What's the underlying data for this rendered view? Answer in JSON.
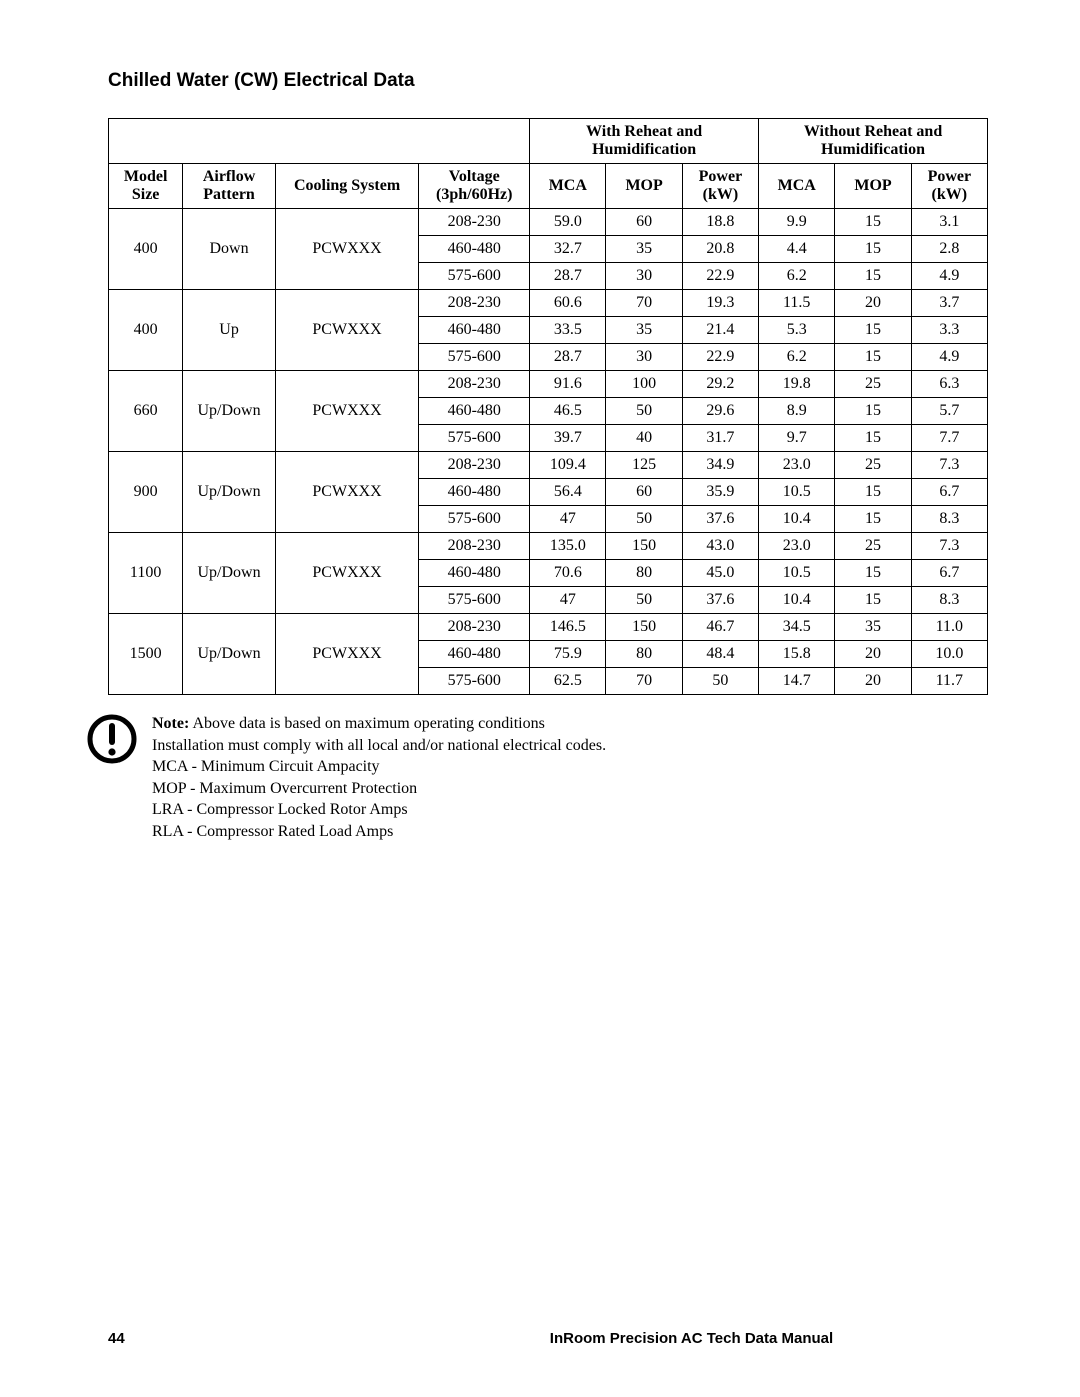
{
  "title": "Chilled Water (CW) Electrical Data",
  "headers": {
    "group_with": "With Reheat and Humidification",
    "group_without": "Without Reheat and Humidification",
    "model": "Model Size",
    "airflow": "Airflow Pattern",
    "cooling": "Cooling System",
    "voltage": "Voltage (3ph/60Hz)",
    "mca": "MCA",
    "mop": "MOP",
    "power": "Power (kW)"
  },
  "groups": [
    {
      "model": "400",
      "airflow": "Down",
      "cooling": "PCWXXX",
      "rows": [
        {
          "voltage": "208-230",
          "w_mca": "59.0",
          "w_mop": "60",
          "w_pow": "18.8",
          "wo_mca": "9.9",
          "wo_mop": "15",
          "wo_pow": "3.1"
        },
        {
          "voltage": "460-480",
          "w_mca": "32.7",
          "w_mop": "35",
          "w_pow": "20.8",
          "wo_mca": "4.4",
          "wo_mop": "15",
          "wo_pow": "2.8"
        },
        {
          "voltage": "575-600",
          "w_mca": "28.7",
          "w_mop": "30",
          "w_pow": "22.9",
          "wo_mca": "6.2",
          "wo_mop": "15",
          "wo_pow": "4.9"
        }
      ]
    },
    {
      "model": "400",
      "airflow": "Up",
      "cooling": "PCWXXX",
      "rows": [
        {
          "voltage": "208-230",
          "w_mca": "60.6",
          "w_mop": "70",
          "w_pow": "19.3",
          "wo_mca": "11.5",
          "wo_mop": "20",
          "wo_pow": "3.7"
        },
        {
          "voltage": "460-480",
          "w_mca": "33.5",
          "w_mop": "35",
          "w_pow": "21.4",
          "wo_mca": "5.3",
          "wo_mop": "15",
          "wo_pow": "3.3"
        },
        {
          "voltage": "575-600",
          "w_mca": "28.7",
          "w_mop": "30",
          "w_pow": "22.9",
          "wo_mca": "6.2",
          "wo_mop": "15",
          "wo_pow": "4.9"
        }
      ]
    },
    {
      "model": "660",
      "airflow": "Up/Down",
      "cooling": "PCWXXX",
      "rows": [
        {
          "voltage": "208-230",
          "w_mca": "91.6",
          "w_mop": "100",
          "w_pow": "29.2",
          "wo_mca": "19.8",
          "wo_mop": "25",
          "wo_pow": "6.3"
        },
        {
          "voltage": "460-480",
          "w_mca": "46.5",
          "w_mop": "50",
          "w_pow": "29.6",
          "wo_mca": "8.9",
          "wo_mop": "15",
          "wo_pow": "5.7"
        },
        {
          "voltage": "575-600",
          "w_mca": "39.7",
          "w_mop": "40",
          "w_pow": "31.7",
          "wo_mca": "9.7",
          "wo_mop": "15",
          "wo_pow": "7.7"
        }
      ]
    },
    {
      "model": "900",
      "airflow": "Up/Down",
      "cooling": "PCWXXX",
      "rows": [
        {
          "voltage": "208-230",
          "w_mca": "109.4",
          "w_mop": "125",
          "w_pow": "34.9",
          "wo_mca": "23.0",
          "wo_mop": "25",
          "wo_pow": "7.3"
        },
        {
          "voltage": "460-480",
          "w_mca": "56.4",
          "w_mop": "60",
          "w_pow": "35.9",
          "wo_mca": "10.5",
          "wo_mop": "15",
          "wo_pow": "6.7"
        },
        {
          "voltage": "575-600",
          "w_mca": "47",
          "w_mop": "50",
          "w_pow": "37.6",
          "wo_mca": "10.4",
          "wo_mop": "15",
          "wo_pow": "8.3"
        }
      ]
    },
    {
      "model": "1100",
      "airflow": "Up/Down",
      "cooling": "PCWXXX",
      "rows": [
        {
          "voltage": "208-230",
          "w_mca": "135.0",
          "w_mop": "150",
          "w_pow": "43.0",
          "wo_mca": "23.0",
          "wo_mop": "25",
          "wo_pow": "7.3"
        },
        {
          "voltage": "460-480",
          "w_mca": "70.6",
          "w_mop": "80",
          "w_pow": "45.0",
          "wo_mca": "10.5",
          "wo_mop": "15",
          "wo_pow": "6.7"
        },
        {
          "voltage": "575-600",
          "w_mca": "47",
          "w_mop": "50",
          "w_pow": "37.6",
          "wo_mca": "10.4",
          "wo_mop": "15",
          "wo_pow": "8.3"
        }
      ]
    },
    {
      "model": "1500",
      "airflow": "Up/Down",
      "cooling": "PCWXXX",
      "rows": [
        {
          "voltage": "208-230",
          "w_mca": "146.5",
          "w_mop": "150",
          "w_pow": "46.7",
          "wo_mca": "34.5",
          "wo_mop": "35",
          "wo_pow": "11.0"
        },
        {
          "voltage": "460-480",
          "w_mca": "75.9",
          "w_mop": "80",
          "w_pow": "48.4",
          "wo_mca": "15.8",
          "wo_mop": "20",
          "wo_pow": "10.0"
        },
        {
          "voltage": "575-600",
          "w_mca": "62.5",
          "w_mop": "70",
          "w_pow": "50",
          "wo_mca": "14.7",
          "wo_mop": "20",
          "wo_pow": "11.7"
        }
      ]
    }
  ],
  "note": {
    "label": "Note:",
    "lines": [
      "Above data is based on maximum operating conditions",
      "Installation must comply with all local and/or national electrical codes.",
      "MCA - Minimum Circuit Ampacity",
      "MOP - Maximum Overcurrent Protection",
      "LRA - Compressor Locked Rotor Amps",
      "RLA - Compressor Rated Load Amps"
    ]
  },
  "footer": {
    "page": "44",
    "doc": "InRoom Precision AC Tech Data Manual"
  }
}
